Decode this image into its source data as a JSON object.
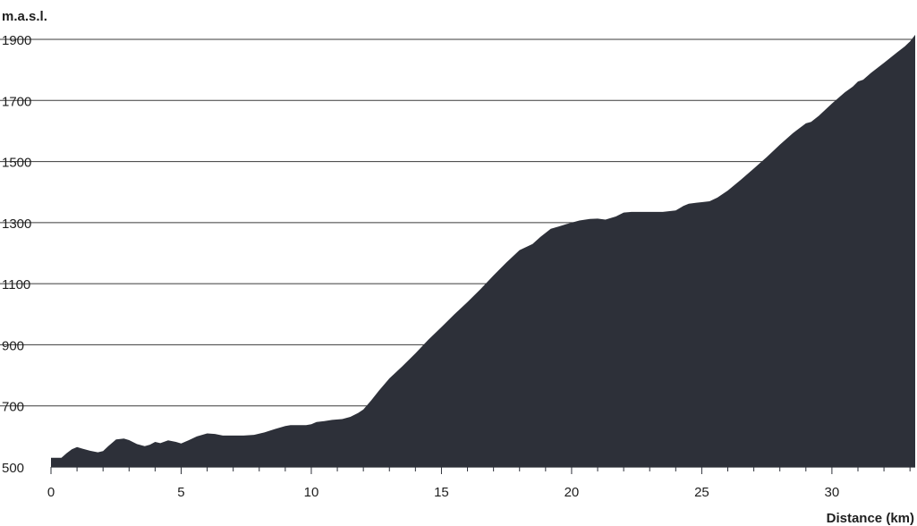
{
  "chart_data": {
    "type": "area",
    "ylabel": "m.a.s.l.",
    "xlabel": "Distance (km)",
    "xlim": [
      0,
      33.2
    ],
    "ylim": [
      500,
      1920
    ],
    "x_ticks": [
      0,
      5,
      10,
      15,
      20,
      25,
      30
    ],
    "y_ticks": [
      500,
      700,
      900,
      1100,
      1300,
      1500,
      1700,
      1900
    ],
    "grid": "horizontal",
    "fill_color": "#2d3039",
    "series": [
      {
        "x": [
          0,
          0.4,
          0.6,
          0.8,
          1.0,
          1.2,
          1.5,
          1.8,
          2.0,
          2.2,
          2.5,
          2.8,
          3.0,
          3.3,
          3.6,
          3.8,
          4.0,
          4.2,
          4.5,
          4.8,
          5.0,
          5.3,
          5.6,
          6.0,
          6.3,
          6.6,
          7.0,
          7.4,
          7.8,
          8.2,
          8.6,
          9.0,
          9.2,
          9.5,
          9.8,
          10.0,
          10.2,
          10.5,
          10.8,
          11.2,
          11.5,
          11.8,
          12.0,
          12.3,
          12.6,
          13.0,
          13.5,
          14.0,
          14.5,
          15.0,
          15.5,
          16.0,
          16.5,
          17.0,
          17.5,
          18.0,
          18.5,
          18.8,
          19.2,
          19.5,
          19.8,
          20.0,
          20.3,
          20.7,
          21.0,
          21.3,
          21.7,
          22.0,
          22.3,
          22.7,
          23.0,
          23.5,
          24.0,
          24.3,
          24.5,
          24.8,
          25.0,
          25.3,
          25.6,
          26.0,
          26.5,
          27.0,
          27.5,
          28.0,
          28.5,
          29.0,
          29.2,
          29.5,
          30.0,
          30.5,
          30.8,
          31.0,
          31.2,
          31.5,
          32.0,
          32.5,
          32.8,
          33.0,
          33.2
        ],
        "y": [
          530,
          530,
          545,
          558,
          565,
          560,
          553,
          548,
          552,
          568,
          590,
          593,
          588,
          575,
          568,
          573,
          582,
          578,
          587,
          582,
          577,
          588,
          600,
          610,
          608,
          603,
          603,
          603,
          605,
          613,
          624,
          634,
          637,
          637,
          637,
          640,
          647,
          650,
          654,
          657,
          664,
          677,
          688,
          718,
          750,
          790,
          830,
          872,
          917,
          958,
          1000,
          1040,
          1082,
          1127,
          1170,
          1210,
          1230,
          1253,
          1280,
          1287,
          1295,
          1300,
          1307,
          1312,
          1313,
          1310,
          1320,
          1333,
          1335,
          1335,
          1335,
          1335,
          1340,
          1355,
          1362,
          1365,
          1367,
          1370,
          1382,
          1405,
          1440,
          1477,
          1515,
          1555,
          1593,
          1625,
          1630,
          1650,
          1690,
          1727,
          1745,
          1762,
          1768,
          1790,
          1823,
          1857,
          1877,
          1893,
          1915
        ]
      }
    ]
  }
}
